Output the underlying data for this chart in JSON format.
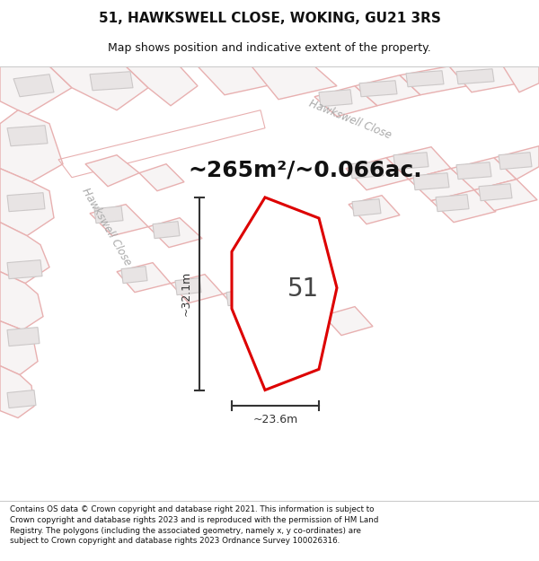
{
  "title_line1": "51, HAWKSWELL CLOSE, WOKING, GU21 3RS",
  "title_line2": "Map shows position and indicative extent of the property.",
  "area_text": "~265m²/~0.066ac.",
  "label_number": "51",
  "dim_vertical": "~32.1m",
  "dim_horizontal": "~23.6m",
  "footer_text": "Contains OS data © Crown copyright and database right 2021. This information is subject to Crown copyright and database rights 2023 and is reproduced with the permission of HM Land Registry. The polygons (including the associated geometry, namely x, y co-ordinates) are subject to Crown copyright and database rights 2023 Ordnance Survey 100026316.",
  "map_bg": "#f7f4f4",
  "building_fill": "#e8e4e4",
  "building_stroke": "#d0c8c8",
  "pink_outline": "#e8b0b0",
  "pink_outline_thin": "#e8b8b8",
  "road_label_color": "#aaaaaa",
  "plot_stroke": "#dd0000",
  "plot_fill": "#ffffff",
  "dim_color": "#333333",
  "area_text_color": "#111111",
  "title_color": "#111111",
  "footer_color": "#111111",
  "title_fontsize": 11,
  "subtitle_fontsize": 9,
  "area_fontsize": 18,
  "label_fontsize": 20,
  "dim_fontsize": 9,
  "footer_fontsize": 6.3
}
